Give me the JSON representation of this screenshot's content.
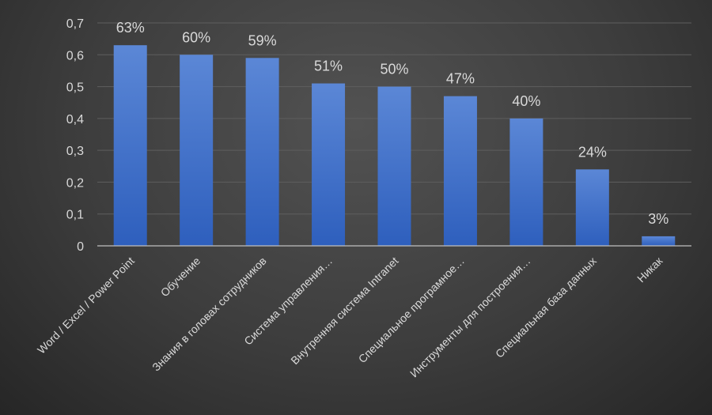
{
  "chart_data": {
    "type": "bar",
    "categories": [
      "Word / Excel / Power Point",
      "Обучение",
      "Знания в головах сотрудников",
      "Система управления…",
      "Внутренняя система Intranet",
      "Специальное програмное…",
      "Инструменты для построения…",
      "Специальная база данных",
      "Никак"
    ],
    "values": [
      0.63,
      0.6,
      0.59,
      0.51,
      0.5,
      0.47,
      0.4,
      0.24,
      0.03
    ],
    "data_labels": [
      "63%",
      "60%",
      "59%",
      "51%",
      "50%",
      "47%",
      "40%",
      "24%",
      "3%"
    ],
    "y_ticks": [
      0,
      0.1,
      0.2,
      0.3,
      0.4,
      0.5,
      0.6,
      0.7
    ],
    "y_tick_labels": [
      "0",
      "0,1",
      "0,2",
      "0,3",
      "0,4",
      "0,5",
      "0,6",
      "0,7"
    ],
    "ylim": [
      0,
      0.7
    ],
    "grid": true,
    "colors": {
      "bar_top": "#5b87d6",
      "bar_bottom": "#2e5fbd",
      "text": "#d9d9d9",
      "gridline": "#5e5e5e",
      "axis": "#bfbfbf"
    }
  }
}
